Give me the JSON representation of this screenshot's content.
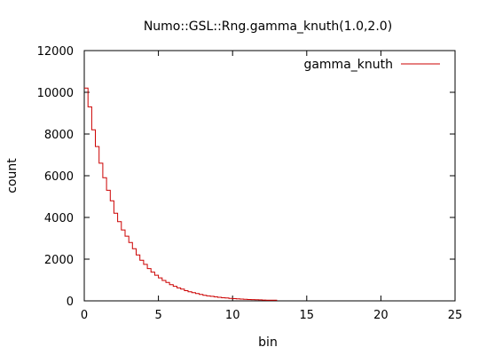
{
  "chart_data": {
    "type": "step-histogram",
    "title": "Numo::GSL::Rng.gamma_knuth(1.0,2.0)",
    "xlabel": "bin",
    "ylabel": "count",
    "xlim": [
      0,
      25
    ],
    "ylim": [
      0,
      12000
    ],
    "xticks": [
      "0",
      "5",
      "10",
      "15",
      "20",
      "25"
    ],
    "yticks": [
      "0",
      "2000",
      "4000",
      "6000",
      "8000",
      "10000",
      "12000"
    ],
    "grid": false,
    "legend_position": "top-right",
    "series": [
      {
        "name": "gamma_knuth",
        "color": "#cc0000",
        "x": [
          0,
          0.25,
          0.5,
          0.75,
          1.0,
          1.25,
          1.5,
          1.75,
          2.0,
          2.25,
          2.5,
          2.75,
          3.0,
          3.25,
          3.5,
          3.75,
          4.0,
          4.25,
          4.5,
          4.75,
          5.0,
          5.25,
          5.5,
          5.75,
          6.0,
          6.25,
          6.5,
          6.75,
          7.0,
          7.25,
          7.5,
          7.75,
          8.0,
          8.25,
          8.5,
          8.75,
          9.0,
          9.25,
          9.5,
          9.75,
          10.0,
          10.25,
          10.5,
          10.75,
          11.0,
          11.25,
          11.5,
          11.75,
          12.0,
          12.25,
          12.5,
          12.75
        ],
        "values": [
          10200,
          9300,
          8200,
          7400,
          6600,
          5900,
          5300,
          4800,
          4200,
          3800,
          3400,
          3100,
          2800,
          2500,
          2200,
          1950,
          1750,
          1550,
          1380,
          1230,
          1100,
          980,
          880,
          780,
          700,
          620,
          560,
          490,
          440,
          390,
          350,
          310,
          270,
          240,
          215,
          190,
          170,
          150,
          135,
          120,
          105,
          95,
          85,
          75,
          65,
          58,
          52,
          46,
          40,
          36,
          32,
          28
        ]
      }
    ]
  }
}
